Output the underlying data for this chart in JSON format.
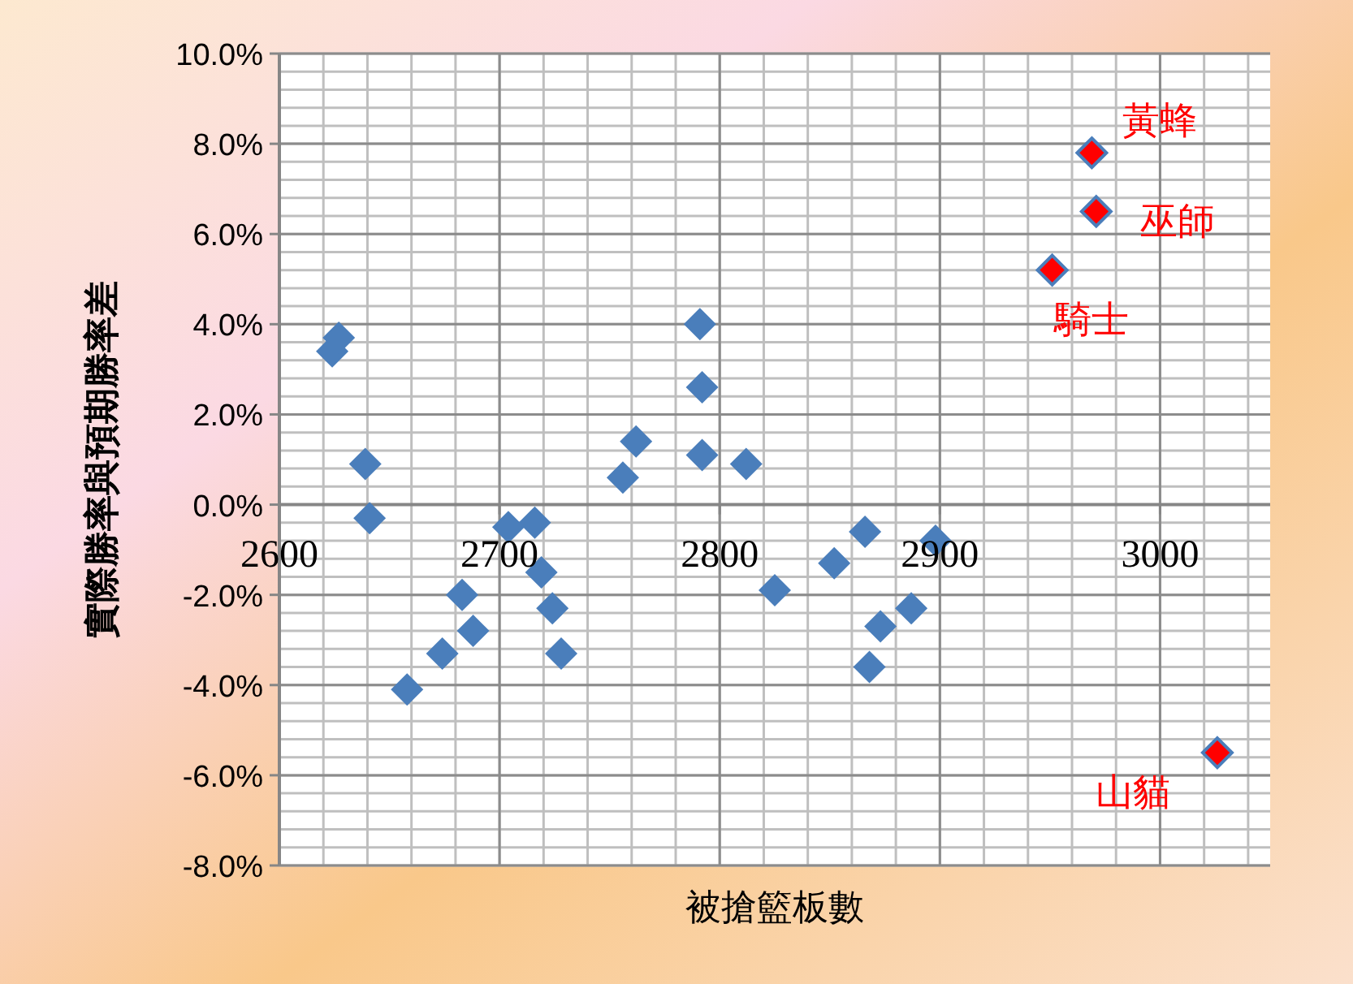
{
  "chart_data": {
    "type": "scatter",
    "xlabel": "被搶籃板數",
    "ylabel": "實際勝率與預期勝率差",
    "marker": "diamond",
    "grid": true,
    "xlim": [
      2600,
      3050
    ],
    "xticks": [
      2600,
      2700,
      2800,
      2900,
      3000
    ],
    "ylim": [
      -8,
      10
    ],
    "yticks": [
      {
        "value": -8,
        "label": "-8.0%"
      },
      {
        "value": -6,
        "label": "-6.0%"
      },
      {
        "value": -4,
        "label": "-4.0%"
      },
      {
        "value": -2,
        "label": "-2.0%"
      },
      {
        "value": 0,
        "label": "0.0%"
      },
      {
        "value": 2,
        "label": "2.0%"
      },
      {
        "value": 4,
        "label": "4.0%"
      },
      {
        "value": 6,
        "label": "6.0%"
      },
      {
        "value": 8,
        "label": "8.0%"
      },
      {
        "value": 10,
        "label": "10.0%"
      }
    ],
    "series": [
      {
        "color": "#4a7ebb",
        "x": [
          2624,
          2627,
          2639,
          2641,
          2658,
          2674,
          2683,
          2688,
          2704,
          2716,
          2719,
          2724,
          2728,
          2756,
          2762,
          2791,
          2792,
          2792,
          2812,
          2825,
          2852,
          2866,
          2868,
          2873,
          2887,
          2898
        ],
        "values": [
          3.4,
          3.7,
          0.9,
          -0.3,
          -4.1,
          -3.3,
          -2.0,
          -2.8,
          -0.5,
          -0.4,
          -1.5,
          -2.3,
          -3.3,
          0.6,
          1.4,
          4.0,
          2.6,
          1.1,
          0.9,
          -1.9,
          -1.3,
          -0.6,
          -3.6,
          -2.7,
          -2.3,
          -0.8
        ]
      },
      {
        "color": "#ff0000",
        "x": [
          2951,
          2969,
          2971,
          3026
        ],
        "values": [
          5.2,
          7.8,
          6.5,
          -5.5
        ]
      }
    ],
    "annotations": [
      {
        "text": "黃蜂",
        "x": 2969,
        "y": 7.8
      },
      {
        "text": "巫師",
        "x": 2971,
        "y": 6.5
      },
      {
        "text": "騎士",
        "x": 2951,
        "y": 5.2
      },
      {
        "text": "山貓",
        "x": 3026,
        "y": -5.5
      }
    ]
  }
}
